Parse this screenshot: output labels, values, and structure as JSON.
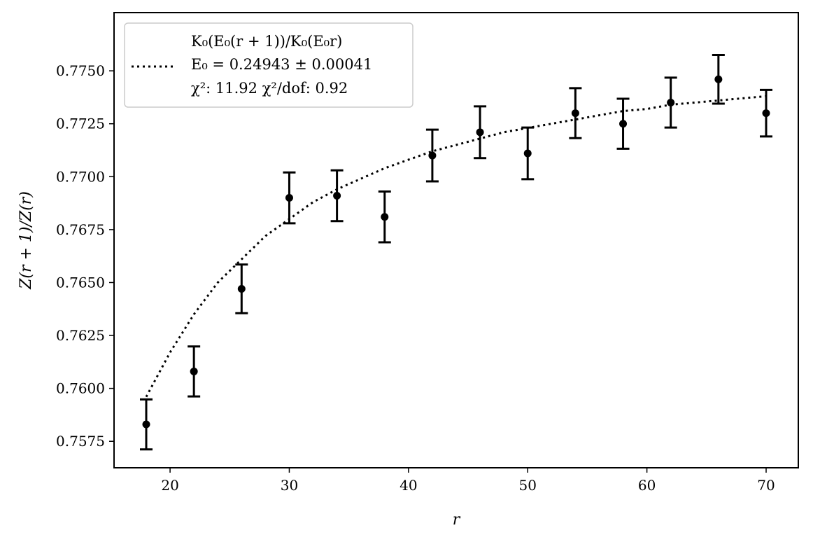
{
  "chart_data": {
    "type": "scatter",
    "title": "",
    "xlabel": "r",
    "ylabel": "Z(r + 1)/Z(r)",
    "xlim": [
      15.3,
      72.7
    ],
    "ylim": [
      0.75625,
      0.77775
    ],
    "xticks": [
      20,
      30,
      40,
      50,
      60,
      70
    ],
    "xtick_labels": [
      "20",
      "30",
      "40",
      "50",
      "60",
      "70"
    ],
    "yticks": [
      0.7575,
      0.76,
      0.7625,
      0.765,
      0.7675,
      0.77,
      0.7725,
      0.775
    ],
    "ytick_labels": [
      "0.7575",
      "0.7600",
      "0.7625",
      "0.7650",
      "0.7675",
      "0.7700",
      "0.7725",
      "0.7750"
    ],
    "grid": false,
    "legend_position": "top-left",
    "series": [
      {
        "kind": "errorbar",
        "x": [
          18,
          22,
          26,
          30,
          34,
          38,
          42,
          46,
          50,
          54,
          58,
          62,
          66,
          70
        ],
        "y": [
          0.7583,
          0.7608,
          0.7647,
          0.769,
          0.7691,
          0.7681,
          0.771,
          0.7721,
          0.7711,
          0.773,
          0.7725,
          0.7735,
          0.7746,
          0.773
        ],
        "yerr": [
          0.00118,
          0.00118,
          0.00115,
          0.0012,
          0.0012,
          0.0012,
          0.00122,
          0.00122,
          0.00122,
          0.00118,
          0.00118,
          0.00118,
          0.00115,
          0.0011
        ],
        "color": "#000000"
      },
      {
        "kind": "fit",
        "style": "dotted",
        "color": "#000000",
        "x": [
          18,
          20,
          22,
          24,
          26,
          28,
          30,
          32,
          34,
          36,
          38,
          40,
          42,
          44,
          46,
          48,
          50,
          52,
          54,
          56,
          58,
          60,
          62,
          64,
          66,
          68,
          70
        ],
        "y": [
          0.7596,
          0.7617,
          0.7635,
          0.765,
          0.7661,
          0.7672,
          0.768,
          0.7688,
          0.7694,
          0.7699,
          0.7704,
          0.7708,
          0.7712,
          0.7715,
          0.7718,
          0.7721,
          0.7723,
          0.7725,
          0.7727,
          0.7729,
          0.7731,
          0.7732,
          0.7734,
          0.7735,
          0.7736,
          0.7737,
          0.7738
        ]
      }
    ],
    "legend": {
      "line1": "K₀(E₀(r + 1))/K₀(E₀r)",
      "line2": "E₀ = 0.24943 ± 0.00041",
      "line3": "χ²: 11.92 χ²/dof: 0.92"
    }
  }
}
